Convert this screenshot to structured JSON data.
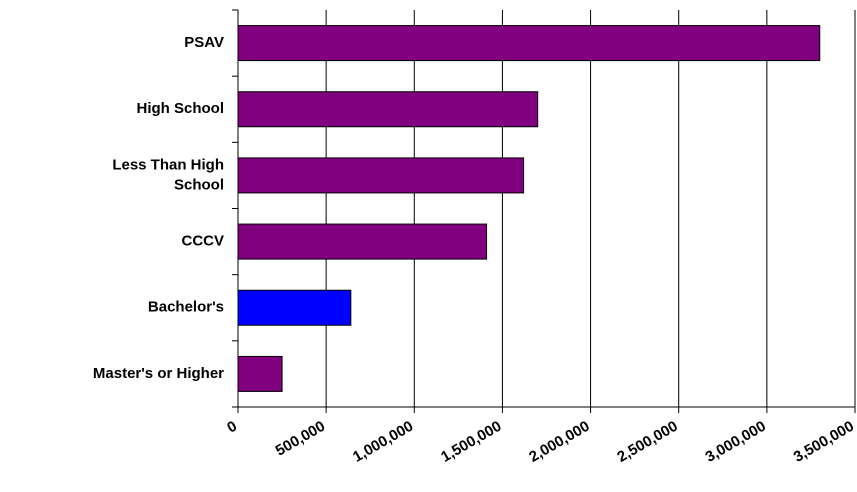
{
  "chart_data": {
    "type": "hbar",
    "categories": [
      "PSAV",
      "High School",
      "Less Than High School",
      "CCCV",
      "Bachelor's",
      "Master's or Higher"
    ],
    "values": [
      3300000,
      1700000,
      1620000,
      1410000,
      640000,
      250000
    ],
    "colors": [
      "#800080",
      "#800080",
      "#800080",
      "#800080",
      "#0000ff",
      "#800080"
    ],
    "xlim": [
      0,
      3500000
    ],
    "xticks": [
      0,
      {
        "value": 500000,
        "label": "500,000"
      },
      {
        "value": 1000000,
        "label": "1,000,000"
      },
      {
        "value": 1500000,
        "label": "1,500,000"
      },
      {
        "value": 2000000,
        "label": "2,000,000"
      },
      {
        "value": 2500000,
        "label": "2,500,000"
      },
      {
        "value": 3000000,
        "label": "3,000,000"
      },
      {
        "value": 3500000,
        "label": "3,500,000"
      }
    ],
    "grid": true
  }
}
